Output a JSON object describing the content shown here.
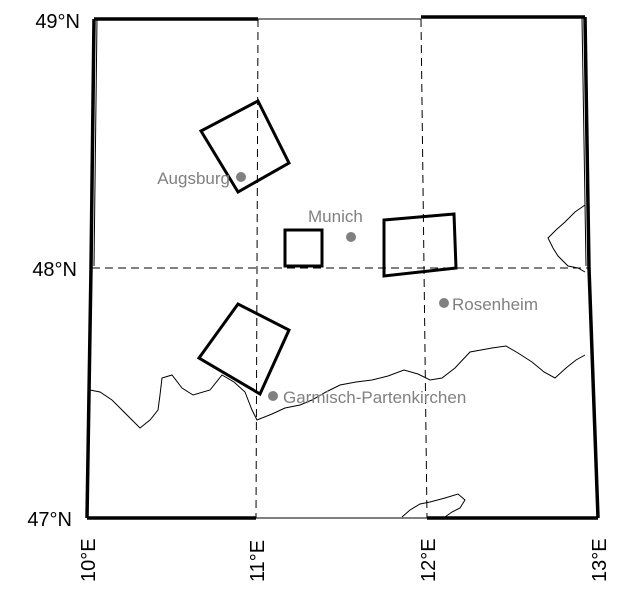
{
  "lat_labels": {
    "lat_49": "49°N",
    "lat_48": "48°N",
    "lat_47": "47°N"
  },
  "lon_labels": {
    "lon_10": "10°E",
    "lon_11": "11°E",
    "lon_12": "12°E",
    "lon_13": "13°E"
  },
  "cities": [
    {
      "name": "Augsburg",
      "lon": 10.9,
      "lat": 48.37
    },
    {
      "name": "Munich",
      "lon": 11.58,
      "lat": 48.14
    },
    {
      "name": "Rosenheim",
      "lon": 12.12,
      "lat": 47.86
    },
    {
      "name": "Garmisch-Partenkirchen",
      "lon": 11.1,
      "lat": 47.49
    }
  ],
  "colors": {
    "frame": "#000000",
    "grid": "#000000",
    "city": "#808080",
    "boundary": "#000000"
  }
}
